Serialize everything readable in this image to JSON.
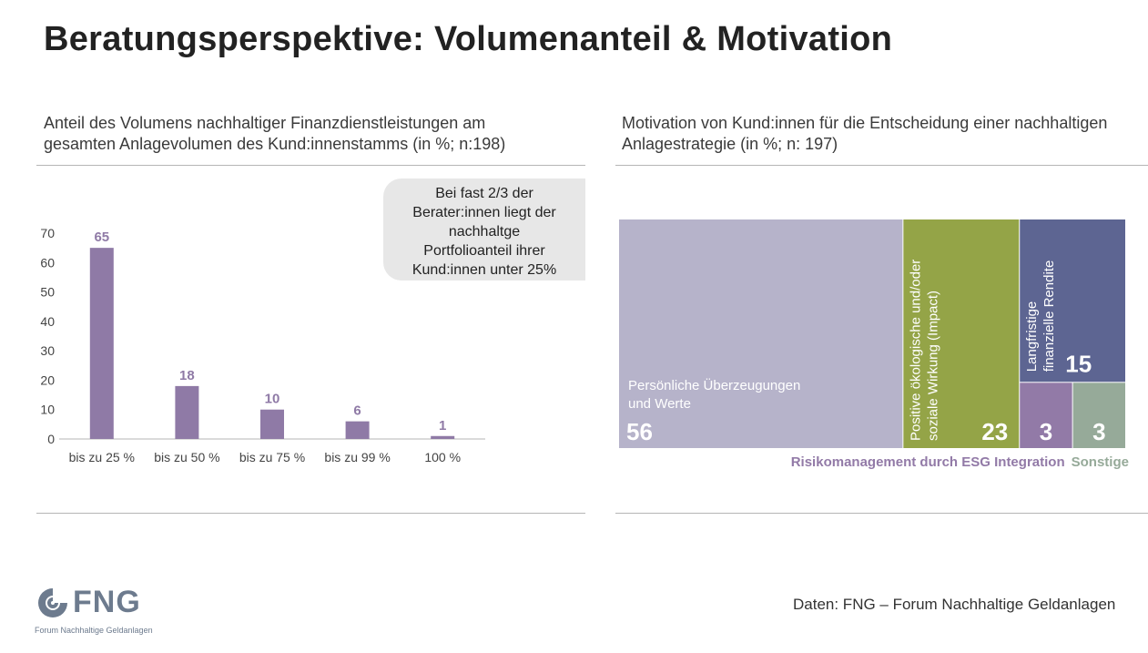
{
  "title": "Beratungsperspektive: Volumenanteil & Motivation",
  "left_panel": {
    "subtitle_lines": [
      "Anteil des Volumens nachhaltiger Finanzdienstleistungen am",
      "gesamten Anlagevolumen des Kund:innenstamms (in %; n:198)"
    ],
    "callout_lines": [
      "Bei fast 2/3 der",
      "Berater:innen liegt der",
      "nachhaltge",
      "Portfolioanteil ihrer",
      "Kund:innen unter 25%"
    ]
  },
  "right_panel": {
    "subtitle_lines": [
      "Motivation von Kund:innen für die Entscheidung einer nachhaltigen",
      "Anlagestrategie (in %; n: 197)"
    ]
  },
  "source": "Daten: FNG – Forum Nachhaltige Geldanlagen",
  "logo": {
    "text": "FNG",
    "subtitle": "Forum Nachhaltige Geldanlagen",
    "icon": "fng-swirl-icon"
  },
  "colors": {
    "bar": "#8f7aa6",
    "persoenlich": "#b6b3ca",
    "impact": "#94a447",
    "rendite": "#5d6592",
    "risiko": "#927aa7",
    "sonstige": "#96aa99"
  },
  "chart_data": [
    {
      "type": "bar",
      "categories": [
        "bis zu 25 %",
        "bis zu 50 %",
        "bis zu 75 %",
        "bis zu 99 %",
        "100 %"
      ],
      "values": [
        65,
        18,
        10,
        6,
        1
      ],
      "ylim": [
        0,
        70
      ],
      "yticks": [
        0,
        10,
        20,
        30,
        40,
        50,
        60,
        70
      ],
      "grid": false
    },
    {
      "type": "treemap",
      "items": [
        {
          "label": "Persönliche Überzeugungen\nund Werte",
          "value": 56,
          "color": "#b6b3ca"
        },
        {
          "label": "Positive ökologische und/oder\nsoziale Wirkung (Impact)",
          "value": 23,
          "color": "#94a447"
        },
        {
          "label": "Langfristige\nfinanzielle Rendite",
          "value": 15,
          "color": "#5d6592"
        },
        {
          "label": "Risikomanagement durch ESG Integration",
          "value": 3,
          "color": "#927aa7"
        },
        {
          "label": "Sonstige",
          "value": 3,
          "color": "#96aa99"
        }
      ]
    }
  ]
}
